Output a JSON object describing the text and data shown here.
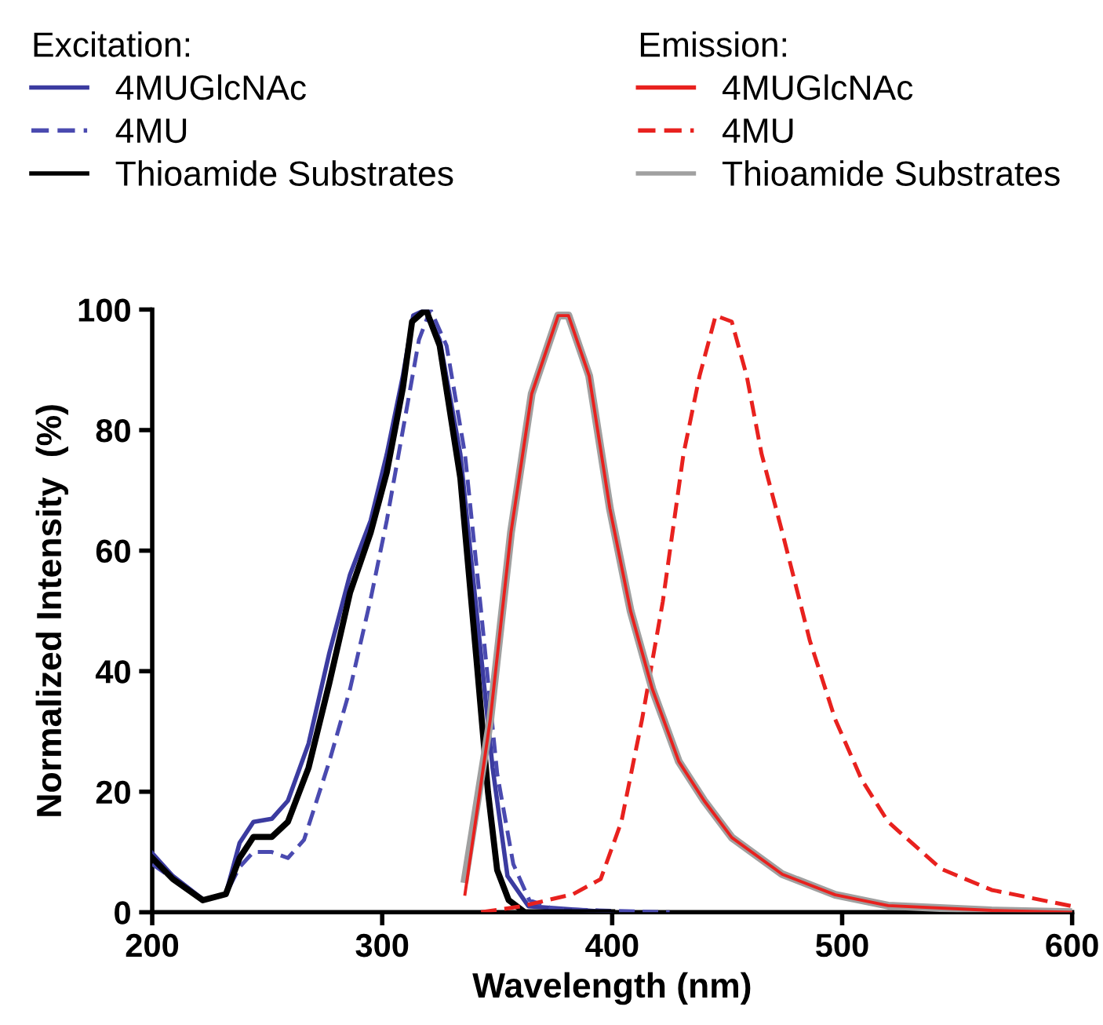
{
  "chart_data": {
    "type": "line",
    "xlabel": "Wavelength (nm)",
    "ylabel": "Normalized Intensity  (%)",
    "xlim": [
      200,
      600
    ],
    "xticks": [
      200,
      300,
      400,
      500,
      600
    ],
    "ylim": [
      0,
      100
    ],
    "yticks": [
      0,
      20,
      40,
      60,
      80,
      100
    ],
    "grid": false,
    "legend": "top",
    "legend_title": [
      "Excitation:",
      "Emission:"
    ],
    "series": [
      {
        "name": "4MUGlcNAc",
        "color": "#3b3ba0",
        "line_style": "solid",
        "x": [
          200,
          209,
          222.5,
          232,
          238,
          244,
          252,
          259,
          268,
          277,
          286,
          295,
          302,
          309,
          313.5,
          319,
          325,
          334,
          341,
          348,
          354.5,
          363.6,
          400
        ],
        "values": [
          9.8,
          6,
          2,
          3,
          11.5,
          15,
          15.5,
          18.5,
          28,
          43,
          56,
          65,
          76,
          89,
          99,
          100,
          95,
          76,
          50,
          24,
          6,
          1,
          0
        ]
      },
      {
        "name": "4MU",
        "color": "#4a4ab0",
        "line_style": "dashed",
        "x": [
          200,
          222,
          232,
          238,
          244,
          252,
          259,
          266,
          277,
          286,
          295,
          302,
          309,
          316,
          321,
          328,
          336,
          343,
          350,
          357,
          364,
          375,
          425
        ],
        "values": [
          8,
          2,
          3,
          7.5,
          10,
          10,
          9,
          12,
          25,
          37,
          52,
          65,
          80,
          95,
          100,
          94,
          76,
          50,
          23,
          8,
          2,
          0.5,
          0
        ]
      },
      {
        "name": "Thioamide Substrates",
        "color": "#000000",
        "line_style": "solid",
        "x": [
          200,
          209,
          222,
          232,
          238,
          244,
          252,
          259,
          268,
          277,
          286,
          295,
          302,
          309,
          313,
          319,
          325,
          334,
          341,
          346,
          350,
          355,
          362,
          400
        ],
        "values": [
          9,
          5.5,
          2,
          3,
          9,
          12.5,
          12.5,
          15,
          24,
          38,
          53,
          63,
          73,
          87,
          98,
          100,
          94,
          72,
          42,
          20,
          7,
          2,
          0,
          0
        ]
      },
      {
        "name": "4MUGlcNAc",
        "color": "#e8211e",
        "line_style": "solid",
        "x": [
          336,
          347,
          356,
          365,
          376.5,
          381,
          390,
          399,
          408,
          417.5,
          429,
          440,
          452,
          474,
          497,
          520,
          565,
          600
        ],
        "values": [
          3,
          32,
          63,
          86,
          99,
          99,
          89,
          67,
          50,
          37,
          25,
          18.5,
          12.4,
          6.3,
          2.9,
          1.1,
          0.3,
          0
        ]
      },
      {
        "name": "4MU",
        "color": "#e8211e",
        "line_style": "dashed",
        "x": [
          343,
          360.6,
          383,
          395,
          404,
          413,
          422,
          431,
          438,
          445,
          452,
          458.5,
          465,
          474,
          486,
          497,
          508.5,
          520,
          543,
          565,
          600
        ],
        "values": [
          0,
          1,
          3,
          5.5,
          15,
          32,
          51.5,
          76,
          89,
          99,
          98,
          89,
          76,
          63,
          45,
          32,
          22,
          15,
          7.2,
          3.7,
          1
        ]
      },
      {
        "name": "Thioamide Substrates",
        "color": "#a0a0a0",
        "line_style": "solid",
        "x": [
          336,
          347,
          356,
          365,
          376.5,
          381,
          390,
          399,
          408,
          417.5,
          429,
          440,
          452,
          474,
          497,
          520,
          565,
          600
        ],
        "values": [
          5.5,
          32,
          63,
          86,
          99,
          99,
          89,
          67,
          50,
          37,
          25,
          18.5,
          12.4,
          6.3,
          2.9,
          1.1,
          0.3,
          0
        ]
      }
    ]
  }
}
